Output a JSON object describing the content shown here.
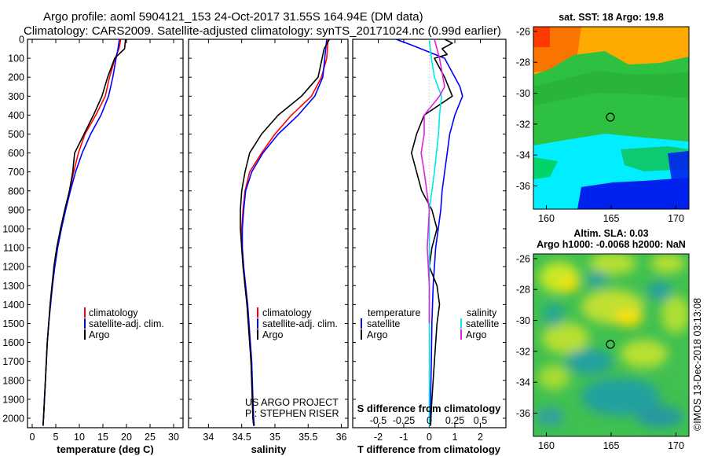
{
  "title": {
    "line1": "Argo profile: aoml 5904121_153 24-Oct-2017 31.55S 164.94E (DM data)",
    "line2": "Climatology: CARS2009. Satellite-adjusted climatology: synTS_20171024.nc (0.99d earlier)"
  },
  "colors": {
    "climatology": "#ff0000",
    "satellite": "#0000ff",
    "argo": "#000000",
    "sal_satellite": "#00e8e8",
    "sal_argo": "#e020e0"
  },
  "depth_axis": {
    "ylim": [
      0,
      2050
    ],
    "ticks": [
      "0",
      "100",
      "200",
      "300",
      "400",
      "500",
      "600",
      "700",
      "800",
      "900",
      "1000",
      "1100",
      "1200",
      "1300",
      "1400",
      "1500",
      "1600",
      "1700",
      "1800",
      "1900",
      "2000"
    ]
  },
  "chart_data": [
    {
      "id": "temperature",
      "type": "line",
      "xlabel": "temperature (deg C)",
      "xlim": [
        -1,
        32
      ],
      "xticks": [
        "0",
        "5",
        "10",
        "15",
        "20",
        "25",
        "30"
      ],
      "legend": [
        "climatology",
        "satellite-adj. clim.",
        "Argo"
      ],
      "series": [
        {
          "name": "climatology",
          "color": "#ff0000",
          "points": [
            [
              18.8,
              0
            ],
            [
              18.4,
              50
            ],
            [
              17.6,
              100
            ],
            [
              16.4,
              200
            ],
            [
              15.5,
              300
            ],
            [
              13.5,
              400
            ],
            [
              11.2,
              500
            ],
            [
              9.8,
              600
            ],
            [
              8.8,
              700
            ],
            [
              7.9,
              800
            ],
            [
              7.0,
              900
            ],
            [
              6.1,
              1000
            ],
            [
              5.3,
              1100
            ],
            [
              4.7,
              1200
            ],
            [
              4.2,
              1300
            ],
            [
              3.8,
              1400
            ],
            [
              3.5,
              1500
            ],
            [
              3.2,
              1600
            ],
            [
              3.0,
              1700
            ],
            [
              2.8,
              1800
            ],
            [
              2.6,
              1900
            ],
            [
              2.4,
              2000
            ],
            [
              2.3,
              2040
            ]
          ]
        },
        {
          "name": "satellite-adj. clim.",
          "color": "#0000ff",
          "points": [
            [
              18.5,
              0
            ],
            [
              18.2,
              50
            ],
            [
              17.8,
              100
            ],
            [
              17.1,
              200
            ],
            [
              16.2,
              300
            ],
            [
              14.6,
              400
            ],
            [
              12.4,
              500
            ],
            [
              10.6,
              600
            ],
            [
              9.2,
              700
            ],
            [
              8.1,
              800
            ],
            [
              7.1,
              900
            ],
            [
              6.2,
              1000
            ],
            [
              5.4,
              1100
            ],
            [
              4.8,
              1200
            ],
            [
              4.3,
              1300
            ],
            [
              3.9,
              1400
            ],
            [
              3.5,
              1500
            ],
            [
              3.2,
              1600
            ],
            [
              3.0,
              1700
            ],
            [
              2.8,
              1800
            ],
            [
              2.6,
              1900
            ],
            [
              2.4,
              2000
            ],
            [
              2.3,
              2040
            ]
          ]
        },
        {
          "name": "Argo",
          "color": "#000000",
          "points": [
            [
              19.8,
              0
            ],
            [
              19.6,
              50
            ],
            [
              17.5,
              100
            ],
            [
              16.0,
              200
            ],
            [
              14.8,
              300
            ],
            [
              13.0,
              400
            ],
            [
              11.0,
              500
            ],
            [
              9.0,
              600
            ],
            [
              8.6,
              700
            ],
            [
              7.9,
              800
            ],
            [
              6.9,
              900
            ],
            [
              6.0,
              1000
            ],
            [
              5.2,
              1100
            ],
            [
              4.6,
              1200
            ],
            [
              4.2,
              1300
            ],
            [
              3.8,
              1400
            ],
            [
              3.5,
              1500
            ],
            [
              3.2,
              1600
            ],
            [
              3.0,
              1700
            ],
            [
              2.8,
              1800
            ],
            [
              2.6,
              1900
            ],
            [
              2.4,
              2000
            ],
            [
              2.3,
              2040
            ]
          ]
        }
      ]
    },
    {
      "id": "salinity",
      "type": "line",
      "xlabel": "salinity",
      "xlim": [
        33.7,
        36.1
      ],
      "xticks": [
        "34",
        "34.5",
        "35",
        "35.5",
        "36"
      ],
      "legend": [
        "climatology",
        "satellite-adj. clim.",
        "Argo"
      ],
      "series": [
        {
          "name": "climatology",
          "color": "#ff0000",
          "points": [
            [
              35.8,
              0
            ],
            [
              35.78,
              100
            ],
            [
              35.7,
              200
            ],
            [
              35.55,
              300
            ],
            [
              35.25,
              400
            ],
            [
              35.0,
              500
            ],
            [
              34.8,
              600
            ],
            [
              34.62,
              700
            ],
            [
              34.55,
              800
            ],
            [
              34.52,
              900
            ],
            [
              34.5,
              1000
            ],
            [
              34.5,
              1100
            ],
            [
              34.52,
              1200
            ],
            [
              34.55,
              1300
            ],
            [
              34.58,
              1400
            ],
            [
              34.6,
              1500
            ],
            [
              34.62,
              1600
            ],
            [
              34.64,
              1700
            ],
            [
              34.65,
              1800
            ],
            [
              34.66,
              1900
            ],
            [
              34.67,
              2000
            ],
            [
              34.68,
              2040
            ]
          ]
        },
        {
          "name": "satellite-adj. clim.",
          "color": "#0000ff",
          "points": [
            [
              35.78,
              0
            ],
            [
              35.75,
              100
            ],
            [
              35.72,
              200
            ],
            [
              35.6,
              300
            ],
            [
              35.35,
              400
            ],
            [
              35.05,
              500
            ],
            [
              34.82,
              600
            ],
            [
              34.65,
              700
            ],
            [
              34.56,
              800
            ],
            [
              34.53,
              900
            ],
            [
              34.51,
              1000
            ],
            [
              34.51,
              1100
            ],
            [
              34.53,
              1200
            ],
            [
              34.56,
              1300
            ],
            [
              34.59,
              1400
            ],
            [
              34.61,
              1500
            ],
            [
              34.63,
              1600
            ],
            [
              34.65,
              1700
            ],
            [
              34.66,
              1800
            ],
            [
              34.67,
              1900
            ],
            [
              34.68,
              2000
            ],
            [
              34.69,
              2040
            ]
          ]
        },
        {
          "name": "Argo",
          "color": "#000000",
          "points": [
            [
              35.82,
              0
            ],
            [
              35.74,
              50
            ],
            [
              35.65,
              200
            ],
            [
              35.4,
              300
            ],
            [
              35.05,
              400
            ],
            [
              34.8,
              500
            ],
            [
              34.62,
              600
            ],
            [
              34.55,
              700
            ],
            [
              34.5,
              800
            ],
            [
              34.48,
              900
            ],
            [
              34.48,
              1000
            ],
            [
              34.5,
              1100
            ],
            [
              34.52,
              1200
            ],
            [
              34.55,
              1300
            ],
            [
              34.58,
              1400
            ],
            [
              34.6,
              1500
            ],
            [
              34.62,
              1600
            ],
            [
              34.64,
              1700
            ],
            [
              34.65,
              1800
            ],
            [
              34.66,
              1900
            ],
            [
              34.67,
              2000
            ],
            [
              34.68,
              2040
            ]
          ]
        }
      ]
    },
    {
      "id": "difference",
      "type": "line",
      "xlabel": "T difference from climatology",
      "xlabel_top": "S difference from climatology",
      "xlim": [
        -3,
        3
      ],
      "xticks": [
        "-2",
        "-1",
        "0",
        "1",
        "2"
      ],
      "top_ticks": [
        "-0.5",
        "-0.25",
        "0",
        "0.25",
        "0.5"
      ],
      "legend": {
        "temperature_heading": "temperature",
        "salinity_heading": "salinity",
        "temperature": [
          "satellite",
          "Argo"
        ],
        "salinity": [
          "satellite",
          "Argo"
        ]
      },
      "series": [
        {
          "name": "temperature satellite",
          "color": "#0000ff",
          "points": [
            [
              -1.3,
              0
            ],
            [
              -0.7,
              30
            ],
            [
              0.6,
              100
            ],
            [
              1.2,
              250
            ],
            [
              1.3,
              300
            ],
            [
              1.0,
              400
            ],
            [
              0.8,
              500
            ],
            [
              0.7,
              600
            ],
            [
              0.6,
              700
            ],
            [
              0.5,
              800
            ],
            [
              0.45,
              900
            ],
            [
              0.35,
              1000
            ],
            [
              0.25,
              1100
            ],
            [
              0.2,
              1200
            ],
            [
              0.15,
              1300
            ],
            [
              0.1,
              1500
            ],
            [
              0.08,
              1700
            ],
            [
              0.05,
              1900
            ],
            [
              0.03,
              2040
            ]
          ]
        },
        {
          "name": "temperature Argo",
          "color": "#000000",
          "points": [
            [
              0.6,
              0
            ],
            [
              0.9,
              20
            ],
            [
              0.5,
              50
            ],
            [
              0.7,
              80
            ],
            [
              0.2,
              100
            ],
            [
              0.6,
              200
            ],
            [
              0.9,
              300
            ],
            [
              -0.2,
              400
            ],
            [
              -0.5,
              500
            ],
            [
              -0.7,
              600
            ],
            [
              -0.5,
              700
            ],
            [
              -0.3,
              800
            ],
            [
              0.1,
              900
            ],
            [
              0.3,
              1000
            ],
            [
              0.1,
              1100
            ],
            [
              0.0,
              1200
            ],
            [
              0.3,
              1300
            ],
            [
              0.4,
              1400
            ],
            [
              0.3,
              1500
            ],
            [
              0.2,
              1700
            ],
            [
              0.1,
              1900
            ],
            [
              0.05,
              2040
            ]
          ]
        },
        {
          "name": "salinity satellite",
          "color": "#00e8e8",
          "points": [
            [
              0.0,
              0
            ],
            [
              0.02,
              100
            ],
            [
              0.05,
              200
            ],
            [
              0.12,
              300
            ],
            [
              0.1,
              400
            ],
            [
              0.09,
              500
            ],
            [
              0.05,
              700
            ],
            [
              0.0,
              900
            ],
            [
              0.0,
              1200
            ],
            [
              0.0,
              1600
            ],
            [
              0.0,
              2040
            ]
          ]
        },
        {
          "name": "salinity Argo",
          "color": "#e020e0",
          "points": [
            [
              0.05,
              0
            ],
            [
              0.1,
              100
            ],
            [
              0.15,
              250
            ],
            [
              0.1,
              300
            ],
            [
              -0.05,
              400
            ],
            [
              -0.05,
              500
            ],
            [
              -0.08,
              600
            ],
            [
              -0.05,
              700
            ],
            [
              0.0,
              900
            ],
            [
              -0.02,
              1100
            ],
            [
              0.0,
              1300
            ],
            [
              0.0,
              1500
            ]
          ]
        }
      ]
    },
    {
      "id": "sst_map",
      "type": "heatmap",
      "title": "sat. SST: 18 Argo: 19.8",
      "xlim": [
        159,
        171
      ],
      "ylim": [
        -37.5,
        -25.7
      ],
      "xticks": [
        "160",
        "165",
        "170"
      ],
      "yticks": [
        "-26",
        "-28",
        "-30",
        "-32",
        "-34",
        "-36"
      ],
      "argo_position": [
        164.94,
        -31.55
      ]
    },
    {
      "id": "sla_map",
      "type": "heatmap",
      "title_line1": "Altim. SLA: 0.03",
      "title_line2": "Argo h1000: -0.0068 h2000: NaN",
      "xlim": [
        159,
        171
      ],
      "ylim": [
        -37.5,
        -25.7
      ],
      "xticks": [
        "160",
        "165",
        "170"
      ],
      "yticks": [
        "-26",
        "-28",
        "-30",
        "-32",
        "-34",
        "-36"
      ],
      "argo_position": [
        164.94,
        -31.55
      ]
    }
  ],
  "annotations": {
    "project_line1": "US ARGO PROJECT",
    "project_line2": "PI: STEPHEN RISER",
    "credit": "©IMOS 13-Dec-2018 03:13:08"
  }
}
